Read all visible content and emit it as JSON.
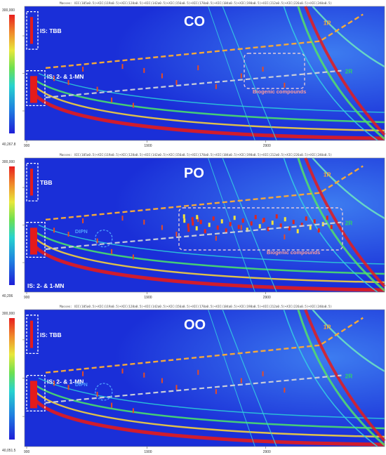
{
  "colors": {
    "plot_bg": "#1a2fd8",
    "orange_line": "#f4a83a",
    "gray_line": "#c8ccd8",
    "label_green": "#2fcf6a",
    "label_orange": "#ff9b4a",
    "biogenic_text": "#ff9b9b",
    "dipn_text": "#4fa0ff",
    "white": "#ffffff"
  },
  "chart_data": [
    {
      "type": "heatmap",
      "title": "CO",
      "header": "Masses: XIC(105a0.5)+XIC(119a0.5)+XIC(128a0.5)+XIC(142a0.5)+XIC(156a0.5)+XIC(170a0.5)+XIC(184a0.5)+XIC(198a0.5)+XIC(212a0.5)+XIC(226a0.5)+XIC(240a0.5)",
      "scale_max": "300,000",
      "scale_min": "40,267.8",
      "xticks": [
        "900",
        "1900",
        "2900"
      ],
      "annotations": {
        "is_top": "IS: TBB",
        "is_bottom": "IS: 2- & 1-MN",
        "line1": "1R",
        "line2": "2R",
        "biogenic": "Biogenic compounds"
      }
    },
    {
      "type": "heatmap",
      "title": "PO",
      "header": "Masses: XIC(105a0.5)+XIC(119a0.5)+XIC(128a0.5)+XIC(142a0.5)+XIC(156a0.5)+XIC(170a0.5)+XIC(184a0.5)+XIC(198a0.5)+XIC(212a0.5)+XIC(226a0.5)+XIC(240a0.5)",
      "scale_max": "300,000",
      "scale_min": "40,206",
      "xticks": [
        "900",
        "1900",
        "2900"
      ],
      "annotations": {
        "is_top": "TBB",
        "is_bottom": "IS: 2- & 1-MN",
        "line1": "1R",
        "line2": "2R",
        "biogenic": "Biogenic compounds",
        "dipn": "DIPN"
      }
    },
    {
      "type": "heatmap",
      "title": "OO",
      "header": "Masses: XIC(105a0.5)+XIC(119a0.5)+XIC(128a0.5)+XIC(142a0.5)+XIC(156a0.5)+XIC(170a0.5)+XIC(184a0.5)+XIC(198a0.5)+XIC(212a0.5)+XIC(226a0.5)+XIC(240a0.5)",
      "scale_max": "300,000",
      "scale_min": "40,051.5",
      "xticks": [
        "900",
        "1900",
        "2900"
      ],
      "annotations": {
        "is_top": "IS: TBB",
        "is_bottom": "IS: 2- & 1-MN",
        "line1": "1R",
        "line2": "2R",
        "dipn": "DIPN"
      }
    }
  ]
}
